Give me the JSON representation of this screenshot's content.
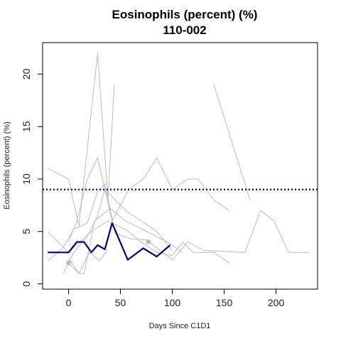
{
  "chart_data": {
    "type": "line",
    "title": "Eosinophils (percent) (%)",
    "subtitle": "110-002",
    "xlabel": "Days Since C1D1",
    "ylabel": "Eosinophils (percent) (%)",
    "xlim": [
      -25,
      240
    ],
    "ylim": [
      -0.5,
      23
    ],
    "xticks": [
      0,
      50,
      100,
      150,
      200
    ],
    "yticks": [
      0,
      5,
      10,
      15,
      20
    ],
    "grid": false,
    "reference_line": {
      "y": 9,
      "color": "#000080",
      "style": "dotted"
    },
    "colors": {
      "highlight": "#000080",
      "background": "#bbbbbb"
    },
    "highlight_series": {
      "x": [
        -20,
        0,
        8,
        15,
        22,
        28,
        35,
        42,
        57,
        72,
        85,
        98
      ],
      "y": [
        3.0,
        3.0,
        4.0,
        4.0,
        3.0,
        3.7,
        3.3,
        5.8,
        2.3,
        3.4,
        2.6,
        3.7
      ]
    },
    "background_series": [
      {
        "x": [
          -20,
          0,
          10,
          28,
          38,
          44
        ],
        "y": [
          11,
          10,
          5.5,
          22,
          8,
          19
        ]
      },
      {
        "x": [
          -20,
          0,
          22,
          38,
          58,
          70,
          85,
          100,
          110,
          120,
          140,
          155
        ],
        "y": [
          5,
          3,
          5,
          6,
          5,
          4,
          3,
          2.7,
          4,
          3,
          3,
          2
        ]
      },
      {
        "x": [
          0,
          8,
          18,
          28,
          35,
          42,
          58,
          72,
          85,
          100,
          115,
          125,
          140,
          155
        ],
        "y": [
          4,
          6,
          10,
          12,
          9,
          6,
          9,
          10,
          12,
          9,
          10,
          10,
          8,
          7
        ]
      },
      {
        "x": [
          -20,
          -5,
          5,
          18,
          28,
          35,
          45,
          60,
          75,
          100,
          115,
          130,
          170,
          185,
          198,
          212,
          232
        ],
        "y": [
          2.2,
          3.5,
          5.2,
          5.8,
          8.8,
          9.5,
          4.8,
          4.3,
          4.2,
          2.3,
          4.0,
          3.2,
          3.0,
          7.0,
          6.0,
          3.0,
          3.0
        ]
      },
      {
        "x": [
          -5,
          5,
          18,
          28,
          35,
          45,
          55,
          70,
          85,
          100
        ],
        "y": [
          1.0,
          3.0,
          4.5,
          6.5,
          9.0,
          8.0,
          7.0,
          6.0,
          5.0,
          3.2
        ]
      },
      {
        "x": [
          0,
          10,
          15,
          25,
          40,
          55,
          75,
          95,
          110
        ],
        "y": [
          2.0,
          1.0,
          1.0,
          6.0,
          7.2,
          6.0,
          5.0,
          4.0,
          3.0
        ]
      },
      {
        "x": [
          140,
          175
        ],
        "y": [
          19,
          8
        ]
      },
      {
        "x": [
          0,
          10,
          20,
          30,
          38
        ],
        "y": [
          2.5,
          1.0,
          3.0,
          2.2,
          3.3
        ]
      }
    ],
    "points": [
      {
        "x": 0,
        "y": 2.0
      },
      {
        "x": 77,
        "y": 4.0
      }
    ]
  }
}
